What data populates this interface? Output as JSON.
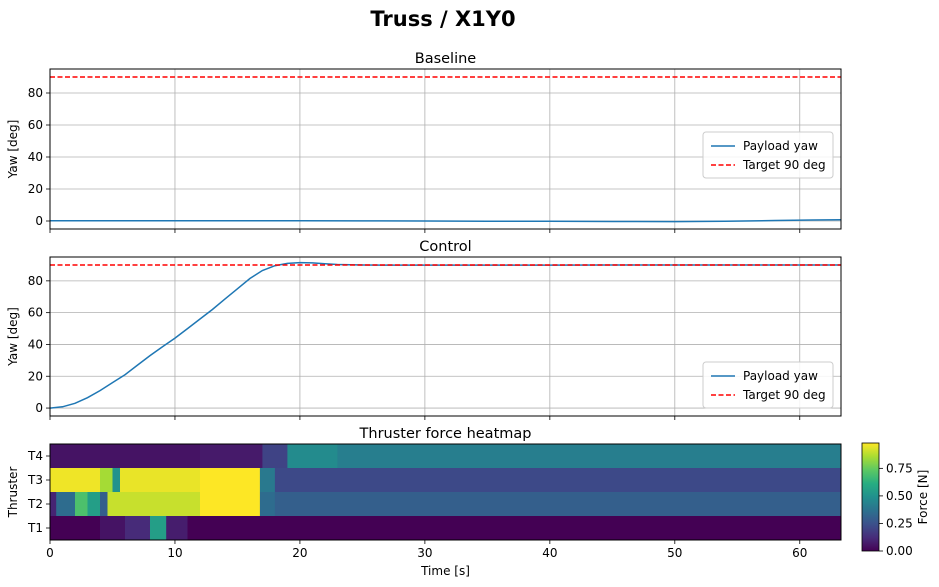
{
  "figure": {
    "title": "Truss / X1Y0"
  },
  "chart_data": [
    {
      "type": "line",
      "title": "Baseline",
      "ylabel": "Yaw [deg]",
      "xlabel": "",
      "xlim": [
        0,
        63.3
      ],
      "ylim": [
        -5,
        95
      ],
      "xticks": [
        0,
        10,
        20,
        30,
        40,
        50,
        60
      ],
      "yticks": [
        0,
        20,
        40,
        60,
        80
      ],
      "grid": true,
      "legend_position": "center-right",
      "series": [
        {
          "name": "Payload yaw",
          "color": "#1f77b4",
          "style": "solid",
          "x": [
            0,
            5,
            10,
            15,
            20,
            25,
            30,
            35,
            40,
            45,
            50,
            54,
            58,
            61,
            63.3
          ],
          "y": [
            0.1,
            0.1,
            0.1,
            0.1,
            0.1,
            0.05,
            0.0,
            -0.1,
            -0.2,
            -0.3,
            -0.4,
            -0.2,
            0.3,
            0.6,
            0.8
          ]
        },
        {
          "name": "Target 90 deg",
          "color": "#ff0000",
          "style": "dashed",
          "x": [
            0,
            63.3
          ],
          "y": [
            90,
            90
          ]
        }
      ]
    },
    {
      "type": "line",
      "title": "Control",
      "ylabel": "Yaw [deg]",
      "xlabel": "",
      "xlim": [
        0,
        63.3
      ],
      "ylim": [
        -5,
        95
      ],
      "xticks": [
        0,
        10,
        20,
        30,
        40,
        50,
        60
      ],
      "yticks": [
        0,
        20,
        40,
        60,
        80
      ],
      "grid": true,
      "legend_position": "bottom-right",
      "series": [
        {
          "name": "Payload yaw",
          "color": "#1f77b4",
          "style": "solid",
          "x": [
            0,
            1,
            2,
            3,
            4,
            5,
            6,
            7,
            8,
            9,
            10,
            11,
            12,
            13,
            14,
            15,
            16,
            17,
            18,
            19,
            20,
            21,
            22,
            23,
            24,
            25,
            27,
            30,
            35,
            40,
            45,
            50,
            55,
            60,
            63.3
          ],
          "y": [
            0,
            0.8,
            3,
            6.5,
            11,
            16,
            21,
            27,
            33,
            38.5,
            44,
            50,
            56,
            62,
            68.5,
            75,
            81.5,
            86.5,
            89.5,
            91,
            91.5,
            91.3,
            90.8,
            90.3,
            90.1,
            90.0,
            89.9,
            89.9,
            89.9,
            89.9,
            90.0,
            90.0,
            90.0,
            90.0,
            90.0
          ]
        },
        {
          "name": "Target 90 deg",
          "color": "#ff0000",
          "style": "dashed",
          "x": [
            0,
            63.3
          ],
          "y": [
            90,
            90
          ]
        }
      ]
    },
    {
      "type": "heatmap",
      "title": "Thruster force heatmap",
      "ylabel": "Thruster",
      "xlabel": "Time [s]",
      "xlim": [
        0,
        63.3
      ],
      "xticks": [
        0,
        10,
        20,
        30,
        40,
        50,
        60
      ],
      "rows": [
        "T4",
        "T3",
        "T2",
        "T1"
      ],
      "colorbar": {
        "label": "Force [N]",
        "min": 0,
        "max": 0.98,
        "ticks": [
          0.0,
          0.25,
          0.5,
          0.75
        ],
        "colormap": "viridis"
      },
      "segments": {
        "T4": [
          [
            0,
            12,
            0.05
          ],
          [
            12,
            17,
            0.07
          ],
          [
            17,
            19,
            0.2
          ],
          [
            19,
            23,
            0.47
          ],
          [
            23,
            63.3,
            0.42
          ]
        ],
        "T3": [
          [
            0,
            4,
            0.96
          ],
          [
            4,
            5,
            0.85
          ],
          [
            5,
            5.6,
            0.5
          ],
          [
            5.6,
            12,
            0.95
          ],
          [
            12,
            16.8,
            0.98
          ],
          [
            16.8,
            18,
            0.4
          ],
          [
            18,
            63.3,
            0.22
          ]
        ],
        "T2": [
          [
            0,
            0.5,
            0.1
          ],
          [
            0.5,
            2,
            0.35
          ],
          [
            2,
            3,
            0.7
          ],
          [
            3,
            4,
            0.55
          ],
          [
            4,
            4.6,
            0.3
          ],
          [
            4.6,
            12,
            0.9
          ],
          [
            12,
            16.8,
            0.98
          ],
          [
            16.8,
            18,
            0.35
          ],
          [
            18,
            63.3,
            0.3
          ]
        ],
        "T1": [
          [
            0,
            4,
            0.0
          ],
          [
            4,
            6,
            0.05
          ],
          [
            6,
            8,
            0.12
          ],
          [
            8,
            9.3,
            0.55
          ],
          [
            9.3,
            11,
            0.08
          ],
          [
            11,
            63.3,
            0.0
          ]
        ]
      }
    }
  ]
}
